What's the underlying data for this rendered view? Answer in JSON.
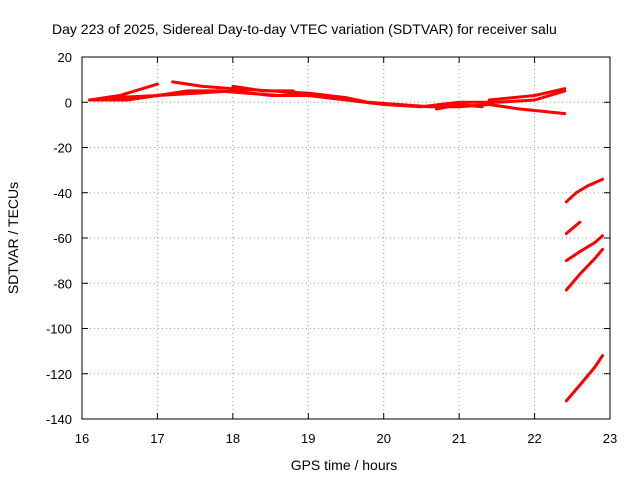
{
  "chart_data": {
    "type": "scatter",
    "title": "Day 223 of 2025, Sidereal Day-to-day VTEC variation (SDTVAR) for receiver salu",
    "xlabel": "GPS time / hours",
    "ylabel": "SDTVAR / TECUs",
    "xlim": [
      16,
      23
    ],
    "ylim": [
      -140,
      20
    ],
    "xticks": [
      "16",
      "17",
      "18",
      "19",
      "20",
      "21",
      "22",
      "23"
    ],
    "yticks": [
      "20",
      "0",
      "-20",
      "-40",
      "-60",
      "-80",
      "-100",
      "-120",
      "-140"
    ],
    "grid": true,
    "color": "#ff0000",
    "series": [
      {
        "x": [
          16.1,
          16.5,
          16.8,
          17.0
        ],
        "y": [
          1,
          3,
          6,
          8
        ]
      },
      {
        "x": [
          16.1,
          16.6,
          17.0,
          17.5,
          18.0,
          18.5,
          19.0,
          19.5,
          20.0,
          20.5,
          21.0,
          21.5,
          22.0,
          22.4
        ],
        "y": [
          1,
          1,
          3,
          4,
          5,
          3,
          3,
          1,
          -1,
          -2,
          0,
          0,
          1,
          5
        ]
      },
      {
        "x": [
          16.4,
          17.0,
          17.4,
          17.8,
          18.2,
          18.6,
          19.0,
          19.5
        ],
        "y": [
          2,
          3,
          5,
          5,
          4,
          3,
          4,
          2
        ]
      },
      {
        "x": [
          17.2,
          17.6,
          18.0,
          18.5,
          19.0,
          19.5,
          19.8,
          20.2,
          20.6,
          21.0,
          21.4,
          21.8,
          22.1,
          22.4
        ],
        "y": [
          9,
          7,
          6,
          5,
          4,
          2,
          0,
          -1,
          -2,
          -2,
          -1,
          -3,
          -4,
          -5
        ]
      },
      {
        "x": [
          18.0,
          18.4,
          18.8
        ],
        "y": [
          7,
          5,
          5
        ]
      },
      {
        "x": [
          20.7,
          21.0,
          21.3
        ],
        "y": [
          -3,
          -1,
          -2
        ]
      },
      {
        "x": [
          21.4,
          21.7,
          22.0,
          22.4
        ],
        "y": [
          1,
          2,
          3,
          6
        ]
      },
      {
        "x": [
          22.42,
          22.55,
          22.7,
          22.9
        ],
        "y": [
          -44,
          -40,
          -37,
          -34
        ]
      },
      {
        "x": [
          22.42,
          22.6
        ],
        "y": [
          -58,
          -53
        ]
      },
      {
        "x": [
          22.42,
          22.6,
          22.8,
          22.9
        ],
        "y": [
          -70,
          -66,
          -62,
          -59
        ]
      },
      {
        "x": [
          22.42,
          22.6,
          22.8,
          22.9
        ],
        "y": [
          -83,
          -76,
          -69,
          -65
        ]
      },
      {
        "x": [
          22.42,
          22.6,
          22.8,
          22.9
        ],
        "y": [
          -132,
          -125,
          -117,
          -112
        ]
      }
    ]
  }
}
